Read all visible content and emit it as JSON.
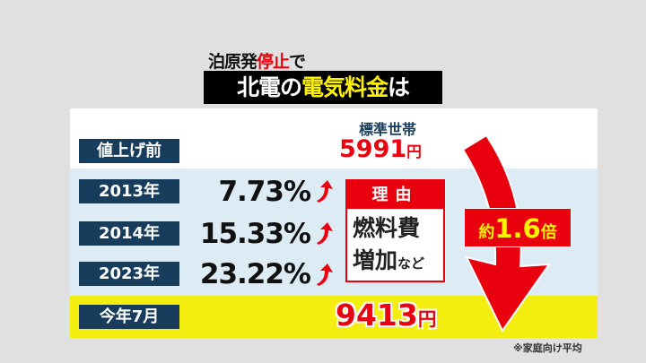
{
  "title": {
    "pre": "泊原発",
    "pre_red": "停止",
    "pre_post": "で",
    "main_white": "北電の",
    "main_yellow": "電気料金",
    "main_end": "は"
  },
  "header": {
    "column": "標準世帯"
  },
  "rows": [
    {
      "label": "値上げ前",
      "value": "5991",
      "unit": "円"
    },
    {
      "label": "2013年",
      "increase": "7.73%"
    },
    {
      "label": "2014年",
      "increase": "15.33%"
    },
    {
      "label": "2023年",
      "increase": "23.22%"
    },
    {
      "label": "今年7月",
      "value": "9413",
      "unit": "円"
    }
  ],
  "reason": {
    "heading": "理由",
    "line1": "燃料費",
    "line2": "増加",
    "line2_small": "など"
  },
  "badge": {
    "prefix": "約",
    "value": "1.6",
    "suffix": "倍"
  },
  "note": "※家庭向け平均",
  "colors": {
    "red": "#e8000f",
    "navy": "#183d5c",
    "yellow": "#f4ee10",
    "light_blue": "#dcebf4"
  },
  "icons": [
    "up-arrow-icon",
    "curved-down-arrow-icon"
  ]
}
